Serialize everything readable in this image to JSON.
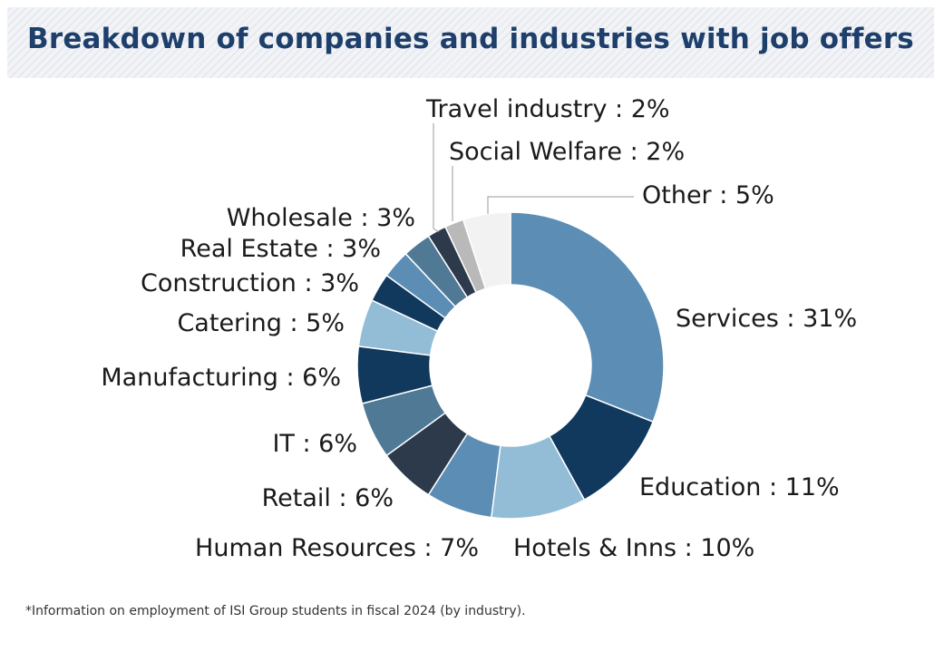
{
  "header": {
    "title": "Breakdown of companies and industries with job offers"
  },
  "footnote": "*Information on employment of ISI Group students in fiscal 2024 (by industry).",
  "chart_data": {
    "type": "pie",
    "variant": "donut",
    "unit": "%",
    "slices": [
      {
        "label": "Services",
        "value": 31,
        "text": "Services : 31%",
        "color": "#5b8db5"
      },
      {
        "label": "Education",
        "value": 11,
        "text": "Education : 11%",
        "color": "#11395e"
      },
      {
        "label": "Hotels & Inns",
        "value": 10,
        "text": "Hotels & Inns : 10%",
        "color": "#93bcd6"
      },
      {
        "label": "Human Resources",
        "value": 7,
        "text": "Human Resources : 7%",
        "color": "#5b8db5"
      },
      {
        "label": "Retail",
        "value": 6,
        "text": "Retail : 6%",
        "color": "#2c3a4b"
      },
      {
        "label": "IT",
        "value": 6,
        "text": "IT : 6%",
        "color": "#4f7995"
      },
      {
        "label": "Manufacturing",
        "value": 6,
        "text": "Manufacturing : 6%",
        "color": "#11395e"
      },
      {
        "label": "Catering",
        "value": 5,
        "text": "Catering : 5%",
        "color": "#93bcd6"
      },
      {
        "label": "Construction",
        "value": 3,
        "text": "Construction : 3%",
        "color": "#11395e"
      },
      {
        "label": "Real Estate",
        "value": 3,
        "text": "Real Estate : 3%",
        "color": "#5b8db5"
      },
      {
        "label": "Wholesale",
        "value": 3,
        "text": "Wholesale : 3%",
        "color": "#4f7995"
      },
      {
        "label": "Travel industry",
        "value": 2,
        "text": "Travel industry : 2%",
        "color": "#2c3a4b"
      },
      {
        "label": "Social Welfare",
        "value": 2,
        "text": "Social Welfare : 2%",
        "color": "#b9b9b9"
      },
      {
        "label": "Other",
        "value": 5,
        "text": "Other : 5%",
        "color": "#f2f2f2"
      }
    ]
  }
}
